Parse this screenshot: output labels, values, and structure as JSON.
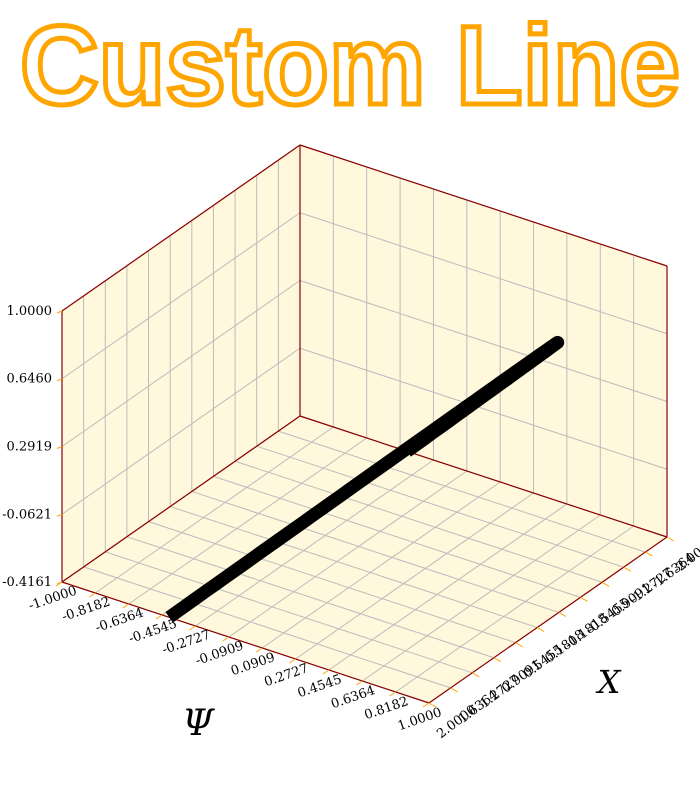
{
  "chart_data": {
    "type": "line",
    "dimensions": "3d",
    "title": "Custom Line",
    "title_color": "#FFA500",
    "pane_color": "#FFF8DC",
    "grid_color": "#BBBBBB",
    "axis_line_color": "#8B0000",
    "tick_color": "#FFA500",
    "line_color": "#000000",
    "xlabel": "X",
    "ylabel": "Ψ",
    "zlabel": "",
    "x_ticks": [
      "-2.0000",
      "-1.6364",
      "-1.2727",
      "-0.9091",
      "-0.5455",
      "-0.1818",
      "0.1818",
      "0.5455",
      "0.9091",
      "1.2727",
      "1.6364",
      "2.0000"
    ],
    "y_ticks": [
      "-1.0000",
      "-0.8182",
      "-0.6364",
      "-0.4545",
      "-0.2727",
      "-0.0909",
      "0.0909",
      "0.2727",
      "0.4545",
      "0.6364",
      "0.8182",
      "1.0000"
    ],
    "z_ticks": [
      "-0.4161",
      "-0.0621",
      "0.2919",
      "0.6460",
      "1.0000"
    ],
    "xlim": [
      -2,
      2
    ],
    "ylim": [
      -1,
      1
    ],
    "zlim": [
      -0.4161,
      1.0
    ],
    "grid": true,
    "series": [
      {
        "x": [
          -2.0,
          -1.6,
          -1.2,
          -0.8,
          -0.4,
          0.0,
          0.4,
          0.8,
          1.2,
          1.6,
          2.0
        ],
        "y": [
          -0.416,
          -0.029,
          0.362,
          0.697,
          0.921,
          1.0,
          0.921,
          0.697,
          0.362,
          -0.029,
          -0.416
        ],
        "z": [
          -0.4161,
          -0.0292,
          0.3624,
          0.6967,
          0.9211,
          1.0,
          0.9211,
          0.6967,
          0.3624,
          -0.0292,
          -0.4161
        ]
      }
    ]
  }
}
